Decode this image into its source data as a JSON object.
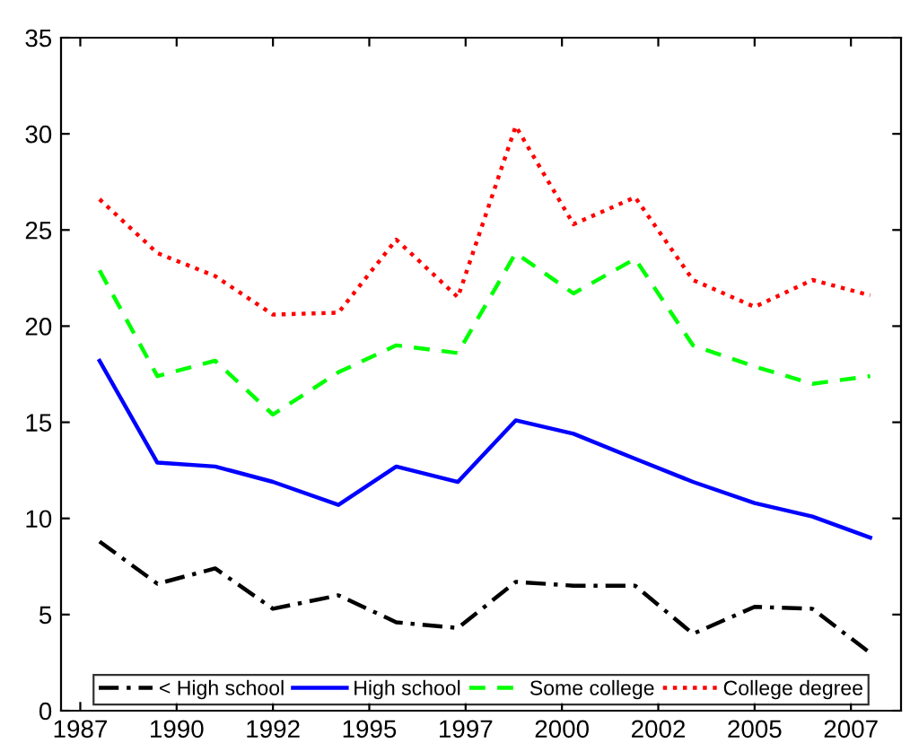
{
  "chart_data": {
    "type": "line",
    "x": [
      1988.0,
      1989.5,
      1991.0,
      1992.5,
      1994.2,
      1995.7,
      1997.3,
      1998.8,
      2000.3,
      2001.9,
      2003.4,
      2005.0,
      2006.5,
      2008.0
    ],
    "series": [
      {
        "name": "< High school",
        "color": "#000000",
        "line_style": "dashdot",
        "values": [
          8.8,
          6.6,
          7.4,
          5.3,
          6.0,
          4.6,
          4.3,
          6.7,
          6.5,
          6.5,
          4.0,
          5.4,
          5.3,
          3.0
        ]
      },
      {
        "name": "High school",
        "color": "#0000ff",
        "line_style": "solid",
        "values": [
          18.2,
          12.9,
          12.7,
          11.9,
          10.7,
          12.7,
          11.9,
          15.1,
          14.4,
          13.1,
          11.9,
          10.8,
          10.1,
          9.0
        ]
      },
      {
        "name": "Some college",
        "color": "#00ff00",
        "line_style": "dashed",
        "values": [
          22.9,
          17.4,
          18.2,
          15.4,
          17.6,
          19.0,
          18.6,
          23.8,
          21.7,
          23.5,
          19.0,
          17.9,
          17.0,
          17.4
        ]
      },
      {
        "name": "College degree",
        "color": "#ff0000",
        "line_style": "dotted",
        "values": [
          26.6,
          23.8,
          22.6,
          20.6,
          20.7,
          24.5,
          21.5,
          30.4,
          25.3,
          26.7,
          22.4,
          21.0,
          22.4,
          21.6
        ]
      }
    ],
    "xlim": [
      1987.0,
      2008.8
    ],
    "xticks": [
      {
        "value": 1987.5,
        "label": "1987"
      },
      {
        "value": 1990,
        "label": "1990"
      },
      {
        "value": 1992.5,
        "label": "1992"
      },
      {
        "value": 1995,
        "label": "1995"
      },
      {
        "value": 1997.5,
        "label": "1997"
      },
      {
        "value": 2000,
        "label": "2000"
      },
      {
        "value": 2002.5,
        "label": "2002"
      },
      {
        "value": 2005,
        "label": "2005"
      },
      {
        "value": 2007.5,
        "label": "2007"
      }
    ],
    "ylim": [
      0,
      35
    ],
    "yticks": [
      0,
      5,
      10,
      15,
      20,
      25,
      30,
      35
    ],
    "grid": false,
    "legend": "bottom"
  }
}
